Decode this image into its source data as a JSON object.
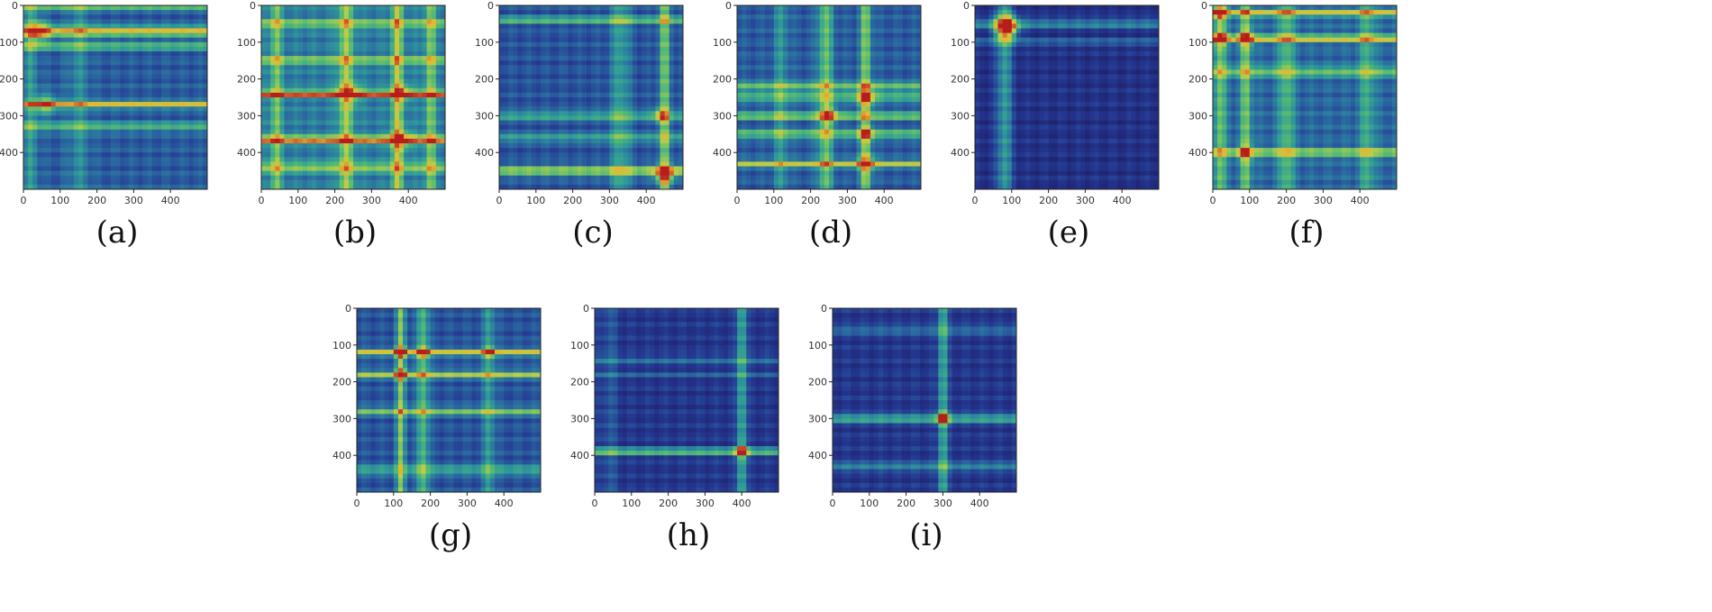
{
  "colors": {
    "cmap": [
      "#1c1f63",
      "#24358f",
      "#2a66a0",
      "#2f9a9a",
      "#55bb72",
      "#b6cf4a",
      "#e3b733",
      "#d2522a",
      "#b81d1d"
    ],
    "background": "#ffffff",
    "frame": "#222222"
  },
  "chart_data": [
    {
      "type": "heatmap",
      "caption": "(a)",
      "colormap": "jet",
      "xlim": [
        0,
        500
      ],
      "ylim": [
        0,
        500
      ],
      "xticks": [
        "0",
        "100",
        "200",
        "300",
        "400"
      ],
      "yticks": [
        "0",
        "100",
        "200",
        "300",
        "400"
      ],
      "base": 0.22,
      "rows": [
        [
          0,
          0.4,
          10
        ],
        [
          70,
          0.55,
          12
        ],
        [
          110,
          0.3,
          10
        ],
        [
          270,
          0.55,
          8
        ],
        [
          330,
          0.25,
          12
        ]
      ],
      "cols": [
        [
          20,
          0.15,
          20
        ],
        [
          150,
          0.12,
          30
        ]
      ],
      "hotspots": [
        [
          70,
          40,
          0.4,
          30
        ],
        [
          270,
          60,
          0.3,
          30
        ]
      ]
    },
    {
      "type": "heatmap",
      "caption": "(b)",
      "colormap": "jet",
      "xlim": [
        0,
        500
      ],
      "ylim": [
        0,
        500
      ],
      "xticks": [
        "0",
        "100",
        "200",
        "300",
        "400"
      ],
      "yticks": [
        "0",
        "100",
        "200",
        "300",
        "400"
      ],
      "base": 0.3,
      "rows": [
        [
          50,
          0.3,
          10
        ],
        [
          150,
          0.3,
          10
        ],
        [
          240,
          0.7,
          8
        ],
        [
          365,
          0.7,
          8
        ],
        [
          440,
          0.3,
          12
        ]
      ],
      "cols": [
        [
          40,
          0.25,
          15
        ],
        [
          230,
          0.3,
          20
        ],
        [
          370,
          0.35,
          15
        ],
        [
          460,
          0.25,
          15
        ]
      ],
      "hotspots": [
        [
          240,
          240,
          0.3,
          30
        ],
        [
          365,
          380,
          0.3,
          30
        ],
        [
          240,
          380,
          0.3,
          25
        ]
      ]
    },
    {
      "type": "heatmap",
      "caption": "(c)",
      "colormap": "jet",
      "xlim": [
        0,
        500
      ],
      "ylim": [
        0,
        500
      ],
      "xticks": [
        "0",
        "100",
        "200",
        "300",
        "400"
      ],
      "yticks": [
        "0",
        "100",
        "200",
        "300",
        "400"
      ],
      "base": 0.2,
      "rows": [
        [
          40,
          0.3,
          10
        ],
        [
          300,
          0.25,
          12
        ],
        [
          360,
          0.25,
          10
        ],
        [
          450,
          0.4,
          14
        ]
      ],
      "cols": [
        [
          330,
          0.2,
          25
        ],
        [
          450,
          0.35,
          15
        ]
      ],
      "hotspots": [
        [
          460,
          450,
          0.5,
          25
        ],
        [
          300,
          440,
          0.3,
          20
        ]
      ]
    },
    {
      "type": "heatmap",
      "caption": "(d)",
      "colormap": "jet",
      "xlim": [
        0,
        500
      ],
      "ylim": [
        0,
        500
      ],
      "xticks": [
        "0",
        "100",
        "200",
        "300",
        "400"
      ],
      "yticks": [
        "0",
        "100",
        "200",
        "300",
        "400"
      ],
      "base": 0.22,
      "rows": [
        [
          220,
          0.35,
          10
        ],
        [
          250,
          0.4,
          8
        ],
        [
          300,
          0.45,
          8
        ],
        [
          350,
          0.35,
          10
        ],
        [
          430,
          0.45,
          8
        ]
      ],
      "cols": [
        [
          240,
          0.3,
          20
        ],
        [
          350,
          0.35,
          15
        ],
        [
          120,
          0.15,
          20
        ]
      ],
      "hotspots": [
        [
          250,
          350,
          0.35,
          25
        ],
        [
          300,
          250,
          0.3,
          25
        ],
        [
          430,
          350,
          0.3,
          25
        ],
        [
          350,
          350,
          0.3,
          20
        ]
      ]
    },
    {
      "type": "heatmap",
      "caption": "(e)",
      "colormap": "jet",
      "xlim": [
        0,
        500
      ],
      "ylim": [
        0,
        500
      ],
      "xticks": [
        "0",
        "100",
        "200",
        "300",
        "400"
      ],
      "yticks": [
        "0",
        "100",
        "200",
        "300",
        "400"
      ],
      "base": 0.1,
      "rows": [
        [
          50,
          0.3,
          10
        ],
        [
          100,
          0.2,
          8
        ]
      ],
      "cols": [
        [
          80,
          0.3,
          20
        ]
      ],
      "hotspots": [
        [
          60,
          85,
          0.8,
          30
        ]
      ]
    },
    {
      "type": "heatmap",
      "caption": "(f)",
      "colormap": "jet",
      "xlim": [
        0,
        500
      ],
      "ylim": [
        0,
        500
      ],
      "xticks": [
        "0",
        "100",
        "200",
        "300",
        "400"
      ],
      "yticks": [
        "0",
        "100",
        "200",
        "300",
        "400"
      ],
      "base": 0.25,
      "rows": [
        [
          20,
          0.4,
          10
        ],
        [
          90,
          0.45,
          10
        ],
        [
          180,
          0.3,
          12
        ],
        [
          400,
          0.35,
          12
        ]
      ],
      "cols": [
        [
          20,
          0.3,
          15
        ],
        [
          90,
          0.3,
          15
        ],
        [
          200,
          0.25,
          20
        ],
        [
          420,
          0.2,
          20
        ]
      ],
      "hotspots": [
        [
          20,
          20,
          0.4,
          20
        ],
        [
          90,
          20,
          0.4,
          20
        ],
        [
          90,
          90,
          0.4,
          20
        ],
        [
          400,
          90,
          0.3,
          20
        ]
      ]
    },
    {
      "type": "heatmap",
      "caption": "(g)",
      "colormap": "jet",
      "xlim": [
        0,
        500
      ],
      "ylim": [
        0,
        500
      ],
      "xticks": [
        "0",
        "100",
        "200",
        "300",
        "400"
      ],
      "yticks": [
        "0",
        "100",
        "200",
        "300",
        "400"
      ],
      "base": 0.2,
      "rows": [
        [
          120,
          0.45,
          10
        ],
        [
          180,
          0.4,
          10
        ],
        [
          280,
          0.35,
          10
        ],
        [
          440,
          0.25,
          12
        ]
      ],
      "cols": [
        [
          120,
          0.35,
          12
        ],
        [
          180,
          0.3,
          15
        ],
        [
          360,
          0.2,
          15
        ]
      ],
      "hotspots": [
        [
          120,
          120,
          0.45,
          15
        ],
        [
          180,
          120,
          0.4,
          15
        ],
        [
          120,
          180,
          0.4,
          15
        ],
        [
          120,
          360,
          0.3,
          15
        ]
      ]
    },
    {
      "type": "heatmap",
      "caption": "(h)",
      "colormap": "jet",
      "xlim": [
        0,
        500
      ],
      "ylim": [
        0,
        500
      ],
      "xticks": [
        "0",
        "100",
        "200",
        "300",
        "400"
      ],
      "yticks": [
        "0",
        "100",
        "200",
        "300",
        "400"
      ],
      "base": 0.12,
      "rows": [
        [
          390,
          0.4,
          10
        ],
        [
          140,
          0.15,
          10
        ],
        [
          180,
          0.1,
          8
        ]
      ],
      "cols": [
        [
          400,
          0.35,
          12
        ],
        [
          40,
          0.1,
          20
        ]
      ],
      "hotspots": [
        [
          390,
          400,
          0.55,
          15
        ]
      ]
    },
    {
      "type": "heatmap",
      "caption": "(i)",
      "colormap": "jet",
      "xlim": [
        0,
        500
      ],
      "ylim": [
        0,
        500
      ],
      "xticks": [
        "0",
        "100",
        "200",
        "300",
        "400"
      ],
      "yticks": [
        "0",
        "100",
        "200",
        "300",
        "400"
      ],
      "base": 0.12,
      "rows": [
        [
          300,
          0.4,
          10
        ],
        [
          60,
          0.2,
          10
        ],
        [
          430,
          0.25,
          10
        ]
      ],
      "cols": [
        [
          300,
          0.35,
          12
        ]
      ],
      "hotspots": [
        [
          300,
          300,
          0.6,
          15
        ]
      ]
    }
  ]
}
